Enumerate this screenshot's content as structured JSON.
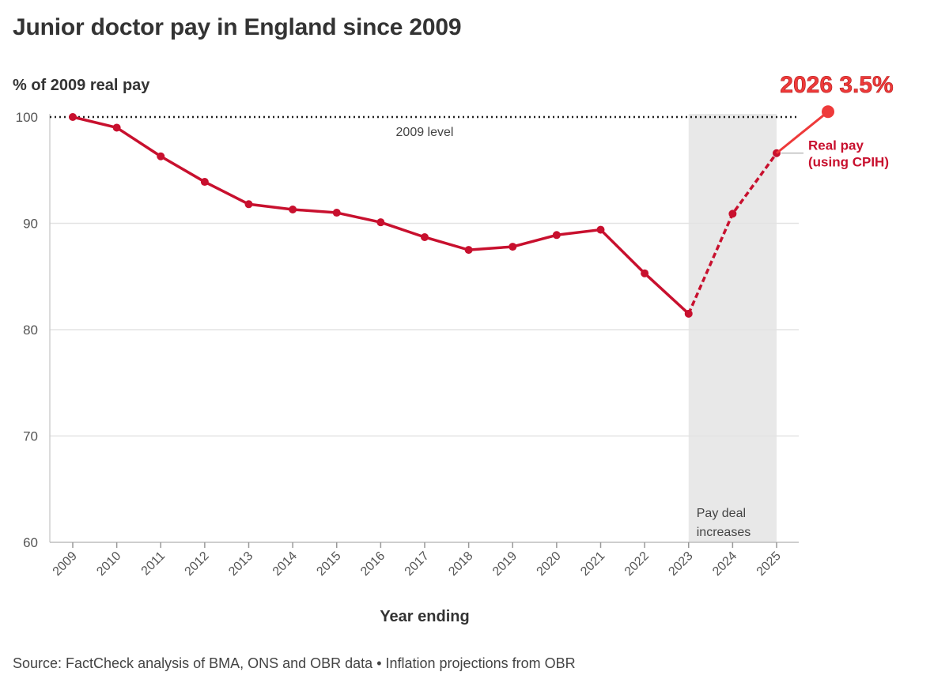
{
  "chart_data": {
    "type": "line",
    "title": "Junior doctor pay in England since 2009",
    "ylabel": "% of 2009 real pay",
    "xlabel": "Year ending",
    "ylim": [
      60,
      100
    ],
    "yticks": [
      60,
      70,
      80,
      90,
      100
    ],
    "categories": [
      "2009",
      "2010",
      "2011",
      "2012",
      "2013",
      "2014",
      "2015",
      "2016",
      "2017",
      "2018",
      "2019",
      "2020",
      "2021",
      "2022",
      "2023",
      "2024",
      "2025"
    ],
    "series": [
      {
        "name": "Real pay (using CPIH)",
        "label_lines": [
          "Real pay",
          "(using CPIH)"
        ],
        "color": "#c8102e",
        "values": [
          100,
          99,
          96.3,
          93.9,
          91.8,
          91.3,
          91.0,
          90.1,
          88.7,
          87.5,
          87.8,
          88.9,
          89.4,
          85.3,
          81.5,
          90.9,
          96.6
        ],
        "projected_from": "2023"
      }
    ],
    "reference_line": {
      "value": 100,
      "label": "2009 level"
    },
    "shaded_region": {
      "from": "2023",
      "to": "2025",
      "label_lines": [
        "Pay deal",
        "increases"
      ]
    },
    "annotation": {
      "text": "2026 3.5%",
      "value": 100.5,
      "color": "#ee3a3a"
    }
  },
  "source": "Source: FactCheck analysis of BMA, ONS and OBR data • Inflation projections from OBR"
}
